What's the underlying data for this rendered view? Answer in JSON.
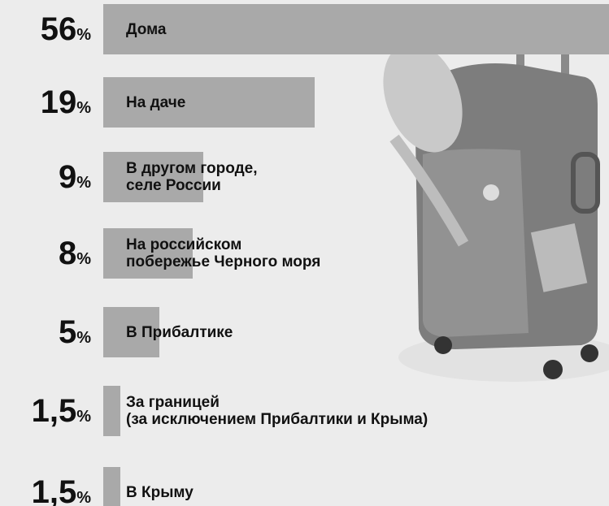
{
  "chart_data": {
    "type": "bar",
    "categories": [
      "Дома",
      "На даче",
      "В другом городе,\nселе России",
      "На российском\nпобережье Черного моря",
      "В Прибалтике",
      "За границей\n(за исключением Прибалтики и Крыма)",
      "В Крыму"
    ],
    "values": [
      56,
      19,
      9,
      8,
      5,
      1.5,
      1.5
    ],
    "value_labels": [
      "56%",
      "19%",
      "9%",
      "8%",
      "5%",
      "1,5%",
      "1,5%"
    ],
    "color": "#a9a9a9"
  }
}
